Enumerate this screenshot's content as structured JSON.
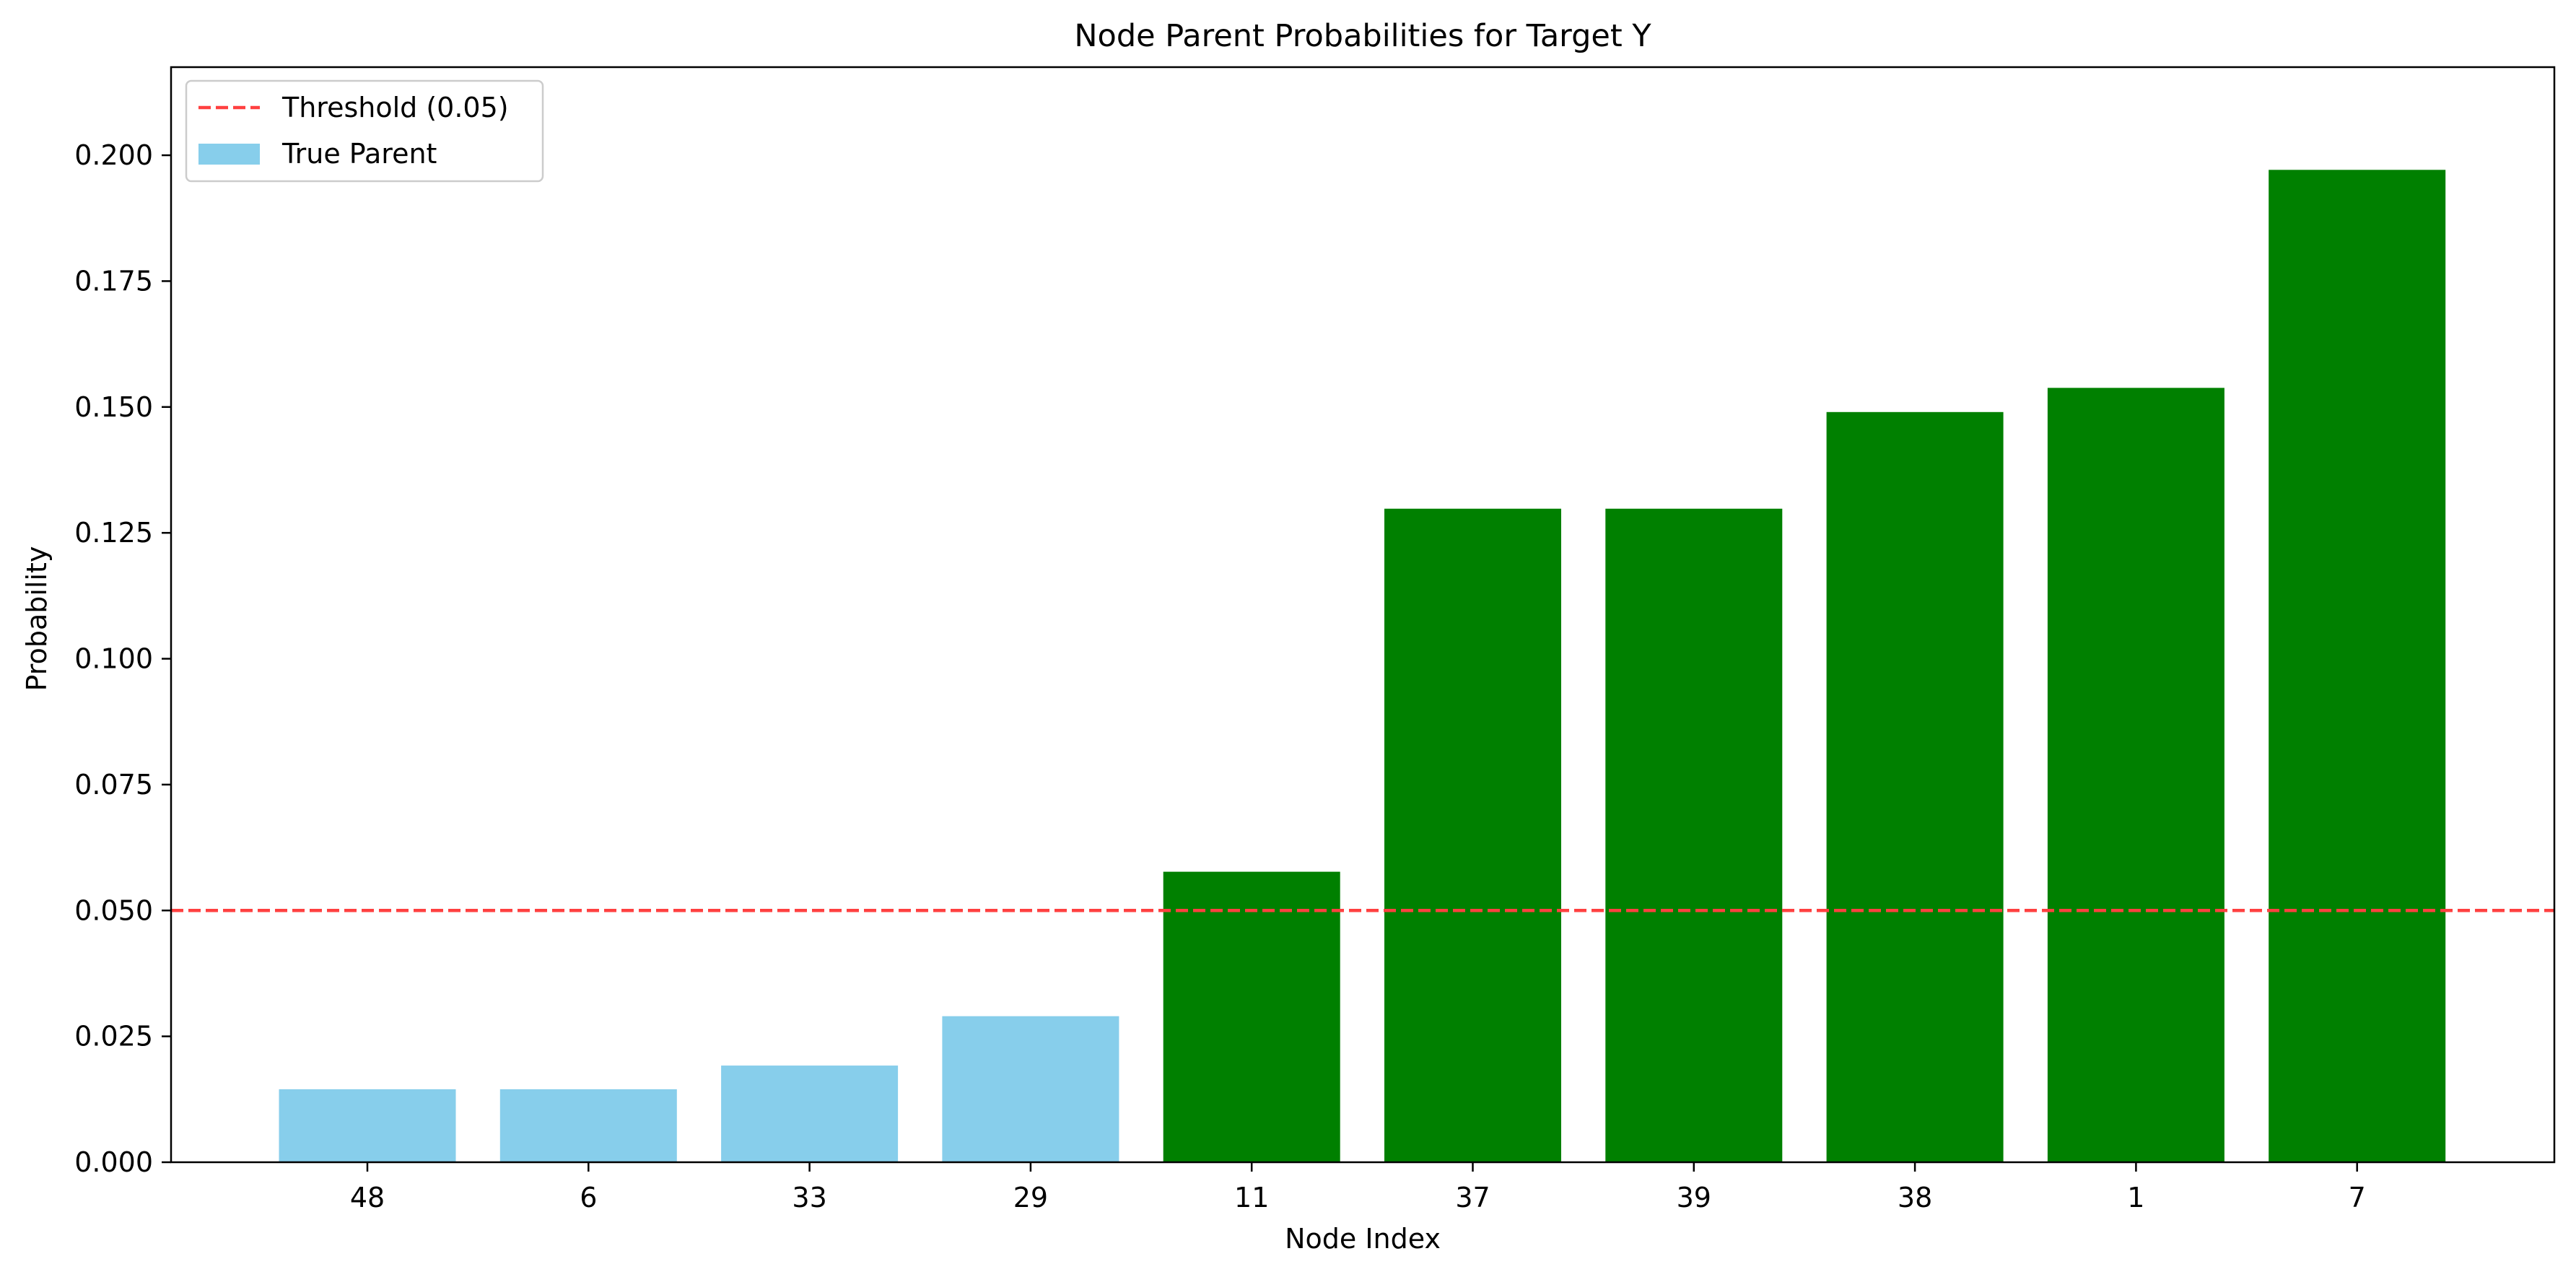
{
  "chart_data": {
    "type": "bar",
    "title": "Node Parent Probabilities for Target Y",
    "xlabel": "Node Index",
    "ylabel": "Probability",
    "categories": [
      "48",
      "6",
      "33",
      "29",
      "11",
      "37",
      "39",
      "38",
      "1",
      "7"
    ],
    "values": [
      0.0145,
      0.0145,
      0.0192,
      0.029,
      0.0577,
      0.1298,
      0.1298,
      0.149,
      0.1538,
      0.1971
    ],
    "bar_colors": [
      "#87CEEB",
      "#87CEEB",
      "#87CEEB",
      "#87CEEB",
      "#008000",
      "#008000",
      "#008000",
      "#008000",
      "#008000",
      "#008000"
    ],
    "ylim": [
      0,
      0.2175
    ],
    "yticks": [
      "0.000",
      "0.025",
      "0.050",
      "0.075",
      "0.100",
      "0.125",
      "0.150",
      "0.175",
      "0.200"
    ],
    "ytick_values": [
      0,
      0.025,
      0.05,
      0.075,
      0.1,
      0.125,
      0.15,
      0.175,
      0.2
    ],
    "threshold": {
      "value": 0.05,
      "color": "#FF4040",
      "style": "dashed"
    },
    "legend": {
      "placement": "top-left",
      "entries": [
        {
          "label": "Threshold (0.05)",
          "kind": "dashed-line",
          "color": "#FF4040"
        },
        {
          "label": "True Parent",
          "kind": "patch",
          "color": "#87CEEB"
        }
      ]
    },
    "grid": false
  }
}
